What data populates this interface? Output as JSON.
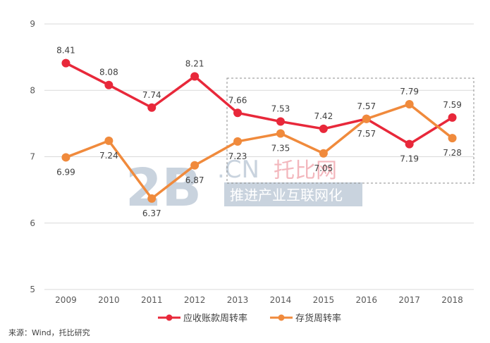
{
  "chart_data": {
    "type": "line",
    "categories": [
      "2009",
      "2010",
      "2011",
      "2012",
      "2013",
      "2014",
      "2015",
      "2016",
      "2017",
      "2018"
    ],
    "ylim": [
      5,
      9
    ],
    "yticks": [
      "5",
      "6",
      "7",
      "8",
      "9"
    ],
    "grid": "horizontal",
    "legend_position": "bottom",
    "series": [
      {
        "name": "应收账款周转率",
        "color": "#e8283a",
        "values": [
          8.41,
          8.08,
          7.74,
          8.21,
          7.66,
          7.53,
          7.42,
          7.57,
          7.19,
          7.59
        ],
        "labels": [
          "8.41",
          "8.08",
          "7.74",
          "8.21",
          "7.66",
          "7.53",
          "7.42",
          "7.57",
          "7.19",
          "7.59"
        ]
      },
      {
        "name": "存货周转率",
        "color": "#f08a3c",
        "values": [
          6.99,
          7.24,
          6.37,
          6.87,
          7.23,
          7.35,
          7.05,
          7.57,
          7.79,
          7.28
        ],
        "labels": [
          "6.99",
          "7.24",
          "6.37",
          "6.87",
          "7.23",
          "7.35",
          "7.05",
          "7.57",
          "7.79",
          "7.28"
        ]
      }
    ]
  },
  "watermark": {
    "big": "2B",
    "cn": ".CN",
    "brand": "托比网",
    "slogan": "推进产业互联网化"
  },
  "source": "来源：Wind，托比研究"
}
